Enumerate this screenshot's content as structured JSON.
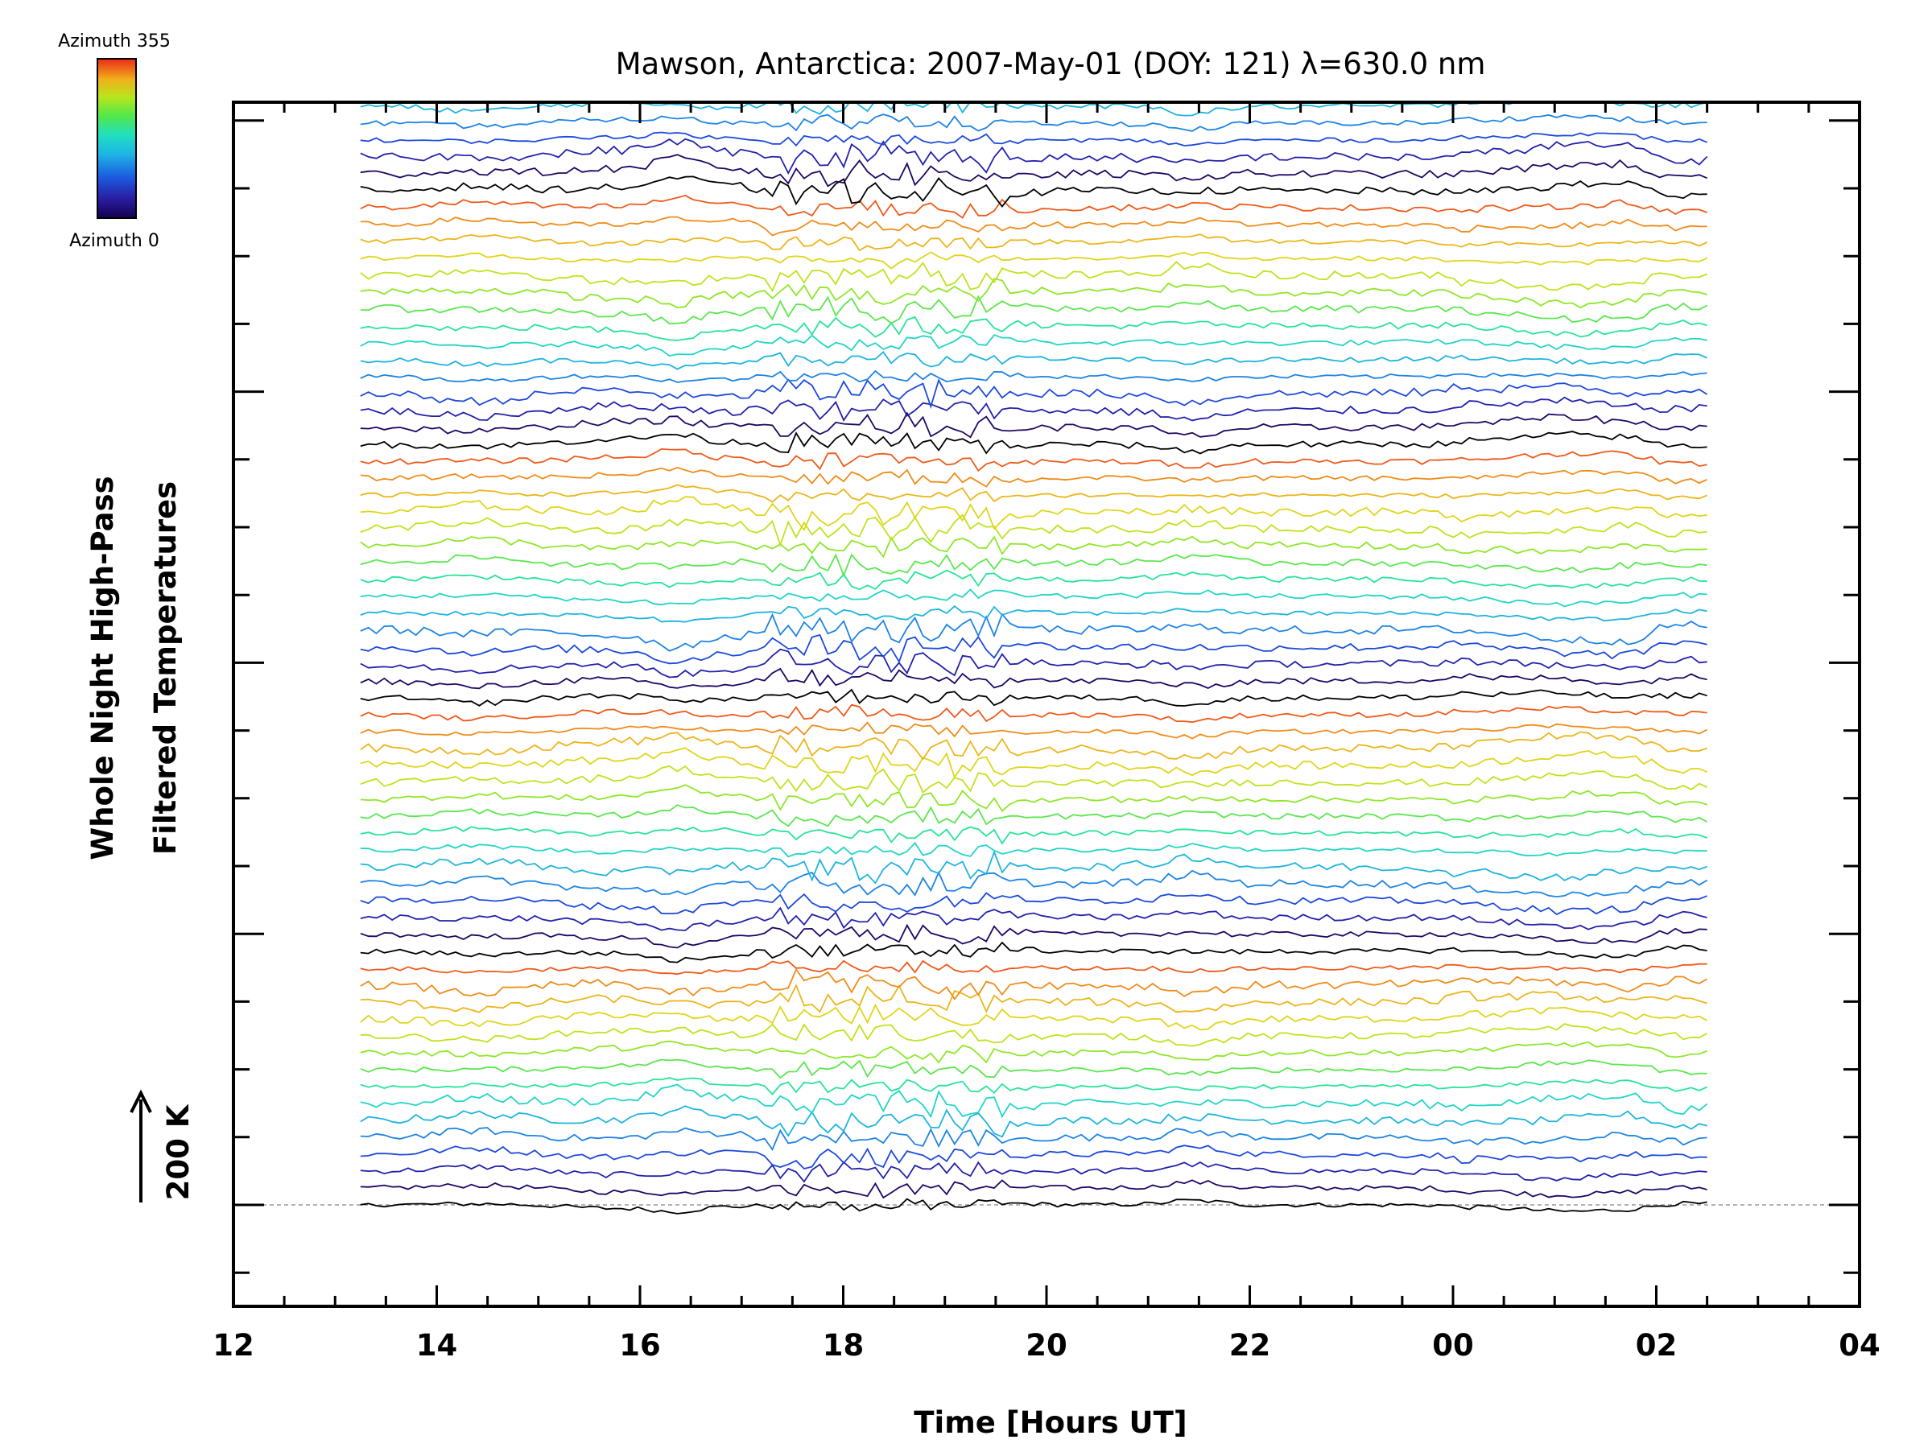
{
  "chart_data": {
    "type": "line",
    "title": "Mawson, Antarctica: 2007-May-01 (DOY: 121) λ=630.0 nm",
    "xlabel": "Time [Hours UT]",
    "ylabel_line1": "Whole Night High-Pass",
    "ylabel_line2": "Filtered Temperatures",
    "scale_label": "200 K",
    "x_ticks": [
      "12",
      "14",
      "16",
      "18",
      "20",
      "22",
      "00",
      "02",
      "04"
    ],
    "xlim": [
      12,
      28
    ],
    "x_range_hours": [
      13.25,
      26.5
    ],
    "trace_count": 73,
    "trace_spacing_K": 50,
    "azimuth_legend": {
      "top": "Azimuth 355",
      "bottom": "Azimuth 0"
    },
    "y_axis_labels": "none",
    "grid": false,
    "legend_position": "top-left",
    "colors": {
      "palette": [
        "#000000",
        "#2a0a8a",
        "#1c3fd8",
        "#1e8fe6",
        "#1fd0d8",
        "#27e39a",
        "#6fe830",
        "#b8e61c",
        "#e6d21a",
        "#f0a01a",
        "#ee5a1a"
      ],
      "axis": "#000000",
      "baseline": "#999999"
    }
  }
}
